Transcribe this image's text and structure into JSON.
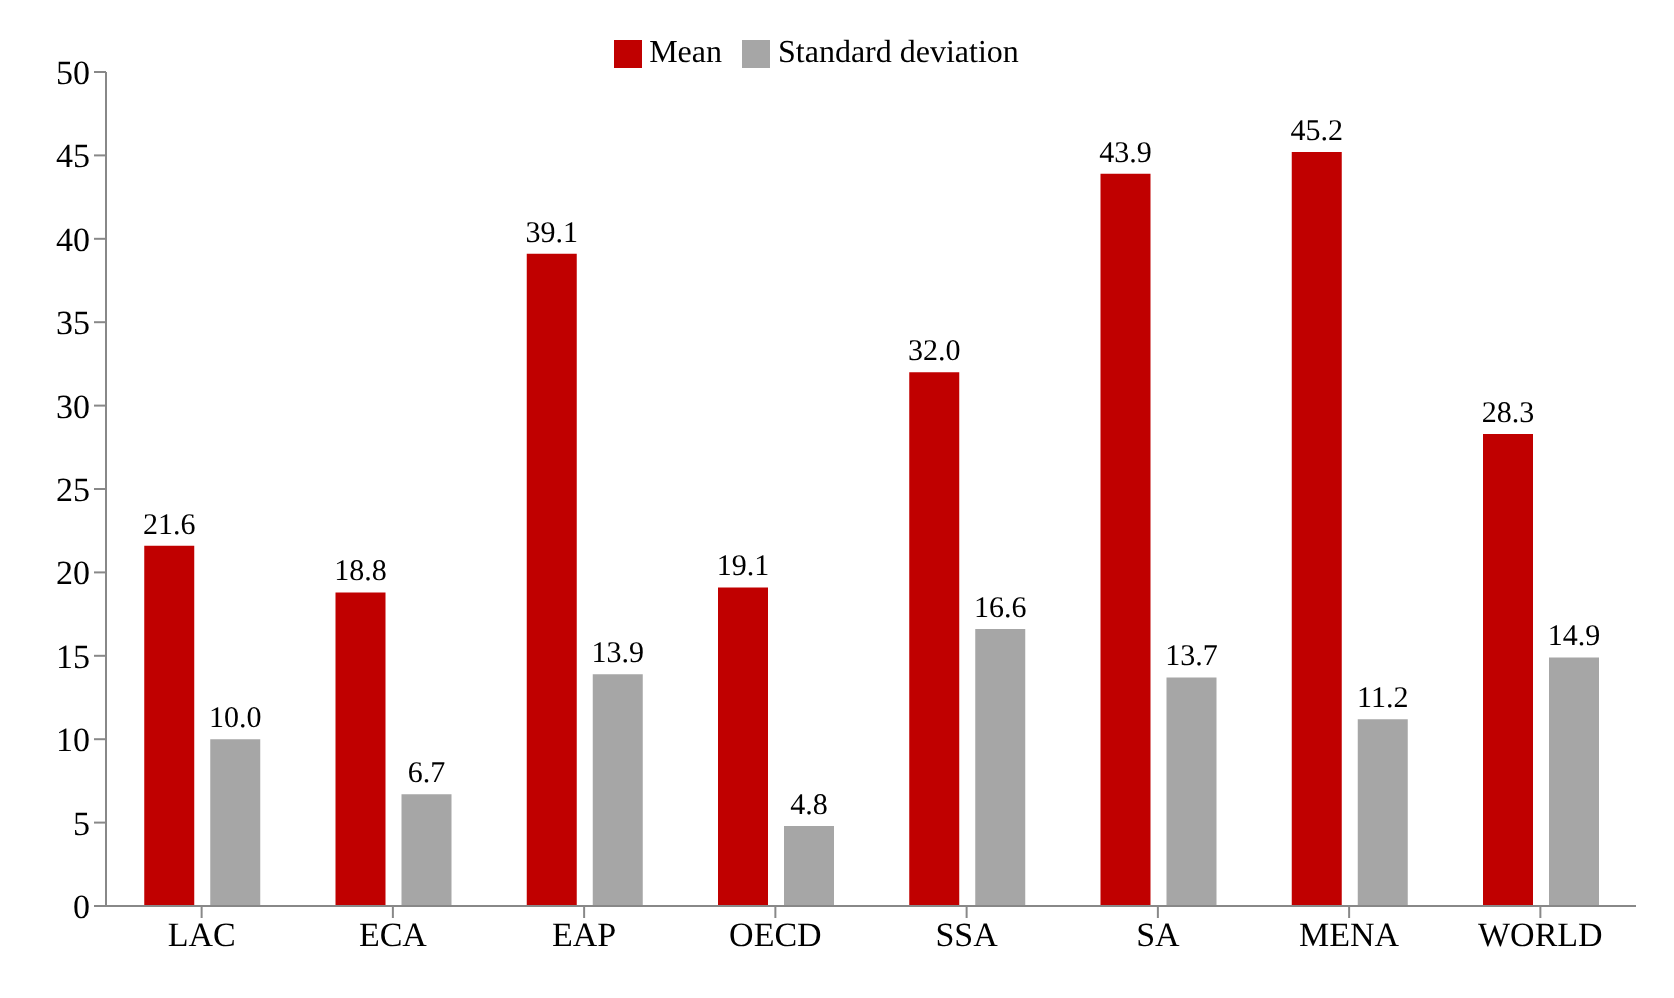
{
  "chart_data": {
    "type": "bar",
    "categories": [
      "LAC",
      "ECA",
      "EAP",
      "OECD",
      "SSA",
      "SA",
      "MENA",
      "WORLD"
    ],
    "series": [
      {
        "name": "Mean",
        "color": "#c00000",
        "values": [
          21.6,
          18.8,
          39.1,
          19.1,
          32.0,
          43.9,
          45.2,
          28.3
        ],
        "value_labels": [
          "21.6",
          "18.8",
          "39.1",
          "19.1",
          "32.0",
          "43.9",
          "45.2",
          "28.3"
        ]
      },
      {
        "name": "Standard deviation",
        "color": "#a6a6a6",
        "values": [
          10.0,
          6.7,
          13.9,
          4.8,
          16.6,
          13.7,
          11.2,
          14.9
        ],
        "value_labels": [
          "10.0",
          "6.7",
          "13.9",
          "4.8",
          "16.6",
          "13.7",
          "11.2",
          "14.9"
        ]
      }
    ],
    "ylim": [
      0,
      50
    ],
    "yticks": [
      0,
      5,
      10,
      15,
      20,
      25,
      30,
      35,
      40,
      45,
      50
    ],
    "grid": false,
    "legend": "top"
  }
}
